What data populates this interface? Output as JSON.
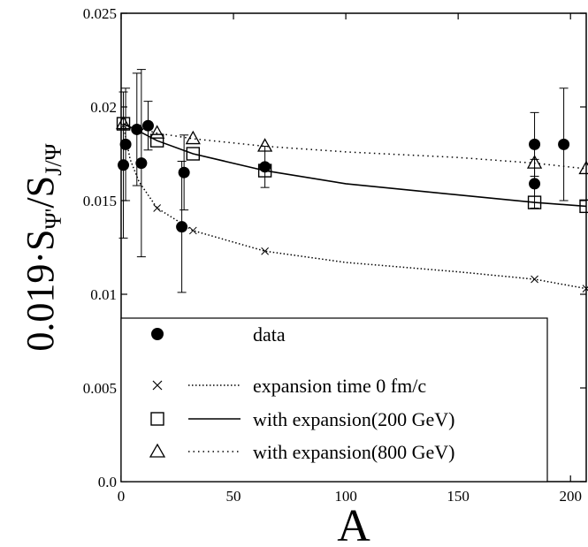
{
  "chart_data": {
    "type": "scatter",
    "xlabel": "A",
    "ylabel": {
      "main": "0.019·S",
      "sub1": "Ψ'",
      "mid": "/S",
      "sub2": "J/Ψ"
    },
    "xlim": [
      0,
      207
    ],
    "ylim": [
      0,
      0.025
    ],
    "x_ticks": [
      0,
      50,
      100,
      150,
      200
    ],
    "x_tick_labels": [
      "0",
      "50",
      "100",
      "150",
      "200"
    ],
    "y_ticks": [
      0,
      0.005,
      0.01,
      0.015,
      0.02,
      0.025
    ],
    "y_tick_labels": [
      "0.0",
      "0.005",
      "0.01",
      "0.015",
      "0.02",
      "0.025"
    ],
    "legend_placement": "bottom-left",
    "series": [
      {
        "name": "data",
        "marker": "filled-circle",
        "points": [
          {
            "x": 1,
            "y": 0.0169,
            "err": 0.0039
          },
          {
            "x": 2,
            "y": 0.018,
            "err": 0.003
          },
          {
            "x": 7,
            "y": 0.0188,
            "err": 0.003
          },
          {
            "x": 9,
            "y": 0.017,
            "err": 0.005
          },
          {
            "x": 12,
            "y": 0.019,
            "err": 0.0013
          },
          {
            "x": 27,
            "y": 0.0136,
            "err": 0.0035
          },
          {
            "x": 28,
            "y": 0.0165,
            "err": 0.002
          },
          {
            "x": 64,
            "y": 0.0168,
            "err": 0.0011
          },
          {
            "x": 184,
            "y": 0.018,
            "err": 0.0017
          },
          {
            "x": 184,
            "y": 0.0159,
            "err": 0.0013
          },
          {
            "x": 197,
            "y": 0.018,
            "err": 0.003
          }
        ]
      },
      {
        "name": "expansion time 0 fm/c",
        "marker": "x",
        "line": "dotted",
        "points": [
          {
            "x": 1,
            "y": 0.019
          },
          {
            "x": 16,
            "y": 0.0146
          },
          {
            "x": 32,
            "y": 0.0134
          },
          {
            "x": 64,
            "y": 0.0123
          },
          {
            "x": 184,
            "y": 0.0108
          },
          {
            "x": 207,
            "y": 0.0103
          }
        ],
        "curve": [
          {
            "x": 1,
            "y": 0.019
          },
          {
            "x": 4,
            "y": 0.0172
          },
          {
            "x": 8,
            "y": 0.016
          },
          {
            "x": 16,
            "y": 0.0146
          },
          {
            "x": 32,
            "y": 0.0134
          },
          {
            "x": 64,
            "y": 0.0123
          },
          {
            "x": 100,
            "y": 0.0117
          },
          {
            "x": 150,
            "y": 0.0112
          },
          {
            "x": 184,
            "y": 0.0108
          },
          {
            "x": 207,
            "y": 0.0103
          }
        ]
      },
      {
        "name": "with expansion(200 GeV)",
        "marker": "open-square",
        "line": "solid",
        "points": [
          {
            "x": 1,
            "y": 0.0191
          },
          {
            "x": 16,
            "y": 0.0182
          },
          {
            "x": 32,
            "y": 0.0175
          },
          {
            "x": 64,
            "y": 0.0166
          },
          {
            "x": 184,
            "y": 0.0149
          },
          {
            "x": 207,
            "y": 0.0147
          }
        ],
        "curve": [
          {
            "x": 1,
            "y": 0.0191
          },
          {
            "x": 8,
            "y": 0.0187
          },
          {
            "x": 16,
            "y": 0.0182
          },
          {
            "x": 32,
            "y": 0.0175
          },
          {
            "x": 64,
            "y": 0.0166
          },
          {
            "x": 100,
            "y": 0.0159
          },
          {
            "x": 150,
            "y": 0.0153
          },
          {
            "x": 184,
            "y": 0.0149
          },
          {
            "x": 207,
            "y": 0.0147
          }
        ]
      },
      {
        "name": "with expansion(800 GeV)",
        "marker": "open-triangle",
        "line": "dotted",
        "points": [
          {
            "x": 1,
            "y": 0.0191
          },
          {
            "x": 16,
            "y": 0.0186
          },
          {
            "x": 32,
            "y": 0.0183
          },
          {
            "x": 64,
            "y": 0.0179
          },
          {
            "x": 184,
            "y": 0.017
          },
          {
            "x": 207,
            "y": 0.0167
          }
        ],
        "curve": [
          {
            "x": 1,
            "y": 0.0191
          },
          {
            "x": 16,
            "y": 0.0186
          },
          {
            "x": 32,
            "y": 0.0183
          },
          {
            "x": 64,
            "y": 0.0179
          },
          {
            "x": 100,
            "y": 0.0176
          },
          {
            "x": 150,
            "y": 0.0173
          },
          {
            "x": 184,
            "y": 0.017
          },
          {
            "x": 207,
            "y": 0.0167
          }
        ]
      }
    ]
  }
}
